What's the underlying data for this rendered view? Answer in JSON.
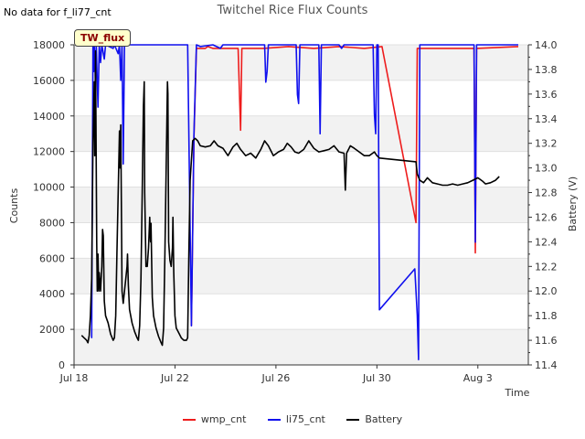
{
  "no_data_note": "No data for f_li77_cnt",
  "site_tag": "TW_flux",
  "chart_data": {
    "type": "line",
    "title": "Twitchel Rice Flux Counts",
    "xlabel": "Time",
    "ylabel": "Counts",
    "y2label": "Battery (V)",
    "x_range_days": [
      0,
      18
    ],
    "ylim": [
      0,
      18000
    ],
    "y2lim": [
      11.4,
      14.0
    ],
    "x_ticks": [
      {
        "label": "Jul 18",
        "day": 0
      },
      {
        "label": "Jul 22",
        "day": 4
      },
      {
        "label": "Jul 26",
        "day": 8
      },
      {
        "label": "Jul 30",
        "day": 12
      },
      {
        "label": "Aug 3",
        "day": 16
      }
    ],
    "y_ticks": [
      0,
      2000,
      4000,
      6000,
      8000,
      10000,
      12000,
      14000,
      16000,
      18000
    ],
    "y_tick_labels": [
      "0",
      "2000",
      "4000",
      "6000",
      "8000",
      "10000",
      "12000",
      "14000",
      "16000",
      "18000"
    ],
    "y2_ticks": [
      11.4,
      11.6,
      11.8,
      12.0,
      12.2,
      12.4,
      12.6,
      12.8,
      13.0,
      13.2,
      13.4,
      13.6,
      13.8,
      14.0
    ],
    "y2_tick_labels": [
      "11.4",
      "11.6",
      "11.8",
      "12.0",
      "12.2",
      "12.4",
      "12.6",
      "12.8",
      "13.0",
      "13.2",
      "13.4",
      "13.6",
      "13.8",
      "14.0"
    ],
    "series": [
      {
        "name": "wmp_cnt",
        "color": "#ee1c1c",
        "axis": "left",
        "points": [
          [
            4.65,
            2200
          ],
          [
            4.75,
            12800
          ],
          [
            4.85,
            17800
          ],
          [
            5.2,
            17800
          ],
          [
            5.3,
            17900
          ],
          [
            5.5,
            17800
          ],
          [
            6.5,
            17800
          ],
          [
            6.6,
            13200
          ],
          [
            6.65,
            17800
          ],
          [
            7.5,
            17800
          ],
          [
            8.5,
            17900
          ],
          [
            9.5,
            17800
          ],
          [
            10.5,
            17900
          ],
          [
            11.5,
            17800
          ],
          [
            12.2,
            17900
          ],
          [
            13.55,
            8000
          ],
          [
            13.6,
            17800
          ],
          [
            14.5,
            17800
          ],
          [
            15.5,
            17800
          ],
          [
            15.85,
            17800
          ],
          [
            15.9,
            6300
          ],
          [
            15.95,
            17800
          ],
          [
            17.6,
            17900
          ]
        ]
      },
      {
        "name": "li75_cnt",
        "color": "#1010ee",
        "axis": "left",
        "points": [
          [
            0.7,
            1500
          ],
          [
            0.75,
            18000
          ],
          [
            0.78,
            16500
          ],
          [
            0.8,
            18000
          ],
          [
            0.85,
            15800
          ],
          [
            0.88,
            18000
          ],
          [
            0.95,
            14500
          ],
          [
            1.0,
            18000
          ],
          [
            1.05,
            17000
          ],
          [
            1.1,
            18000
          ],
          [
            1.2,
            17200
          ],
          [
            1.25,
            18000
          ],
          [
            1.55,
            17800
          ],
          [
            1.6,
            18000
          ],
          [
            1.75,
            17500
          ],
          [
            1.8,
            18000
          ],
          [
            1.85,
            16000
          ],
          [
            1.9,
            18000
          ],
          [
            1.95,
            11300
          ],
          [
            2.0,
            18000
          ],
          [
            2.5,
            18000
          ],
          [
            3.0,
            18000
          ],
          [
            3.5,
            18000
          ],
          [
            4.0,
            18000
          ],
          [
            4.5,
            18000
          ],
          [
            4.65,
            2200
          ],
          [
            4.75,
            13000
          ],
          [
            4.85,
            18000
          ],
          [
            5.0,
            17900
          ],
          [
            5.5,
            18000
          ],
          [
            5.8,
            17800
          ],
          [
            5.9,
            18000
          ],
          [
            6.5,
            18000
          ],
          [
            7.0,
            18000
          ],
          [
            7.55,
            18000
          ],
          [
            7.6,
            15900
          ],
          [
            7.65,
            16500
          ],
          [
            7.7,
            18000
          ],
          [
            8.5,
            18000
          ],
          [
            8.8,
            18000
          ],
          [
            8.85,
            15200
          ],
          [
            8.9,
            14700
          ],
          [
            8.95,
            18000
          ],
          [
            9.5,
            18000
          ],
          [
            9.7,
            18000
          ],
          [
            9.75,
            13000
          ],
          [
            9.8,
            18000
          ],
          [
            10.5,
            18000
          ],
          [
            10.6,
            17800
          ],
          [
            10.7,
            18000
          ],
          [
            11.5,
            18000
          ],
          [
            11.85,
            18000
          ],
          [
            11.9,
            14100
          ],
          [
            11.95,
            13000
          ],
          [
            12.0,
            18000
          ],
          [
            12.05,
            18000
          ],
          [
            12.1,
            3100
          ],
          [
            13.5,
            5400
          ],
          [
            13.6,
            2800
          ],
          [
            13.65,
            300
          ],
          [
            13.7,
            18000
          ],
          [
            14.5,
            18000
          ],
          [
            15.5,
            18000
          ],
          [
            15.85,
            18000
          ],
          [
            15.9,
            6900
          ],
          [
            15.95,
            18000
          ],
          [
            16.5,
            18000
          ],
          [
            17.6,
            18000
          ]
        ]
      },
      {
        "name": "Battery",
        "color": "#000000",
        "axis": "right",
        "points": [
          [
            0.3,
            11.64
          ],
          [
            0.4,
            11.62
          ],
          [
            0.45,
            11.61
          ],
          [
            0.5,
            11.6
          ],
          [
            0.55,
            11.58
          ],
          [
            0.6,
            11.64
          ],
          [
            0.65,
            11.8
          ],
          [
            0.7,
            12.1
          ],
          [
            0.75,
            13.2
          ],
          [
            0.8,
            13.7
          ],
          [
            0.82,
            13.1
          ],
          [
            0.85,
            13.95
          ],
          [
            0.9,
            12.4
          ],
          [
            0.92,
            12.0
          ],
          [
            0.95,
            12.3
          ],
          [
            0.98,
            12.0
          ],
          [
            1.0,
            12.15
          ],
          [
            1.05,
            12.0
          ],
          [
            1.1,
            12.2
          ],
          [
            1.13,
            12.5
          ],
          [
            1.16,
            12.45
          ],
          [
            1.2,
            11.92
          ],
          [
            1.25,
            11.8
          ],
          [
            1.35,
            11.74
          ],
          [
            1.45,
            11.65
          ],
          [
            1.55,
            11.6
          ],
          [
            1.6,
            11.62
          ],
          [
            1.65,
            11.8
          ],
          [
            1.7,
            12.3
          ],
          [
            1.75,
            12.8
          ],
          [
            1.8,
            13.3
          ],
          [
            1.82,
            13.0
          ],
          [
            1.85,
            13.35
          ],
          [
            1.88,
            12.6
          ],
          [
            1.9,
            12.0
          ],
          [
            1.95,
            11.9
          ],
          [
            2.0,
            12.0
          ],
          [
            2.05,
            12.1
          ],
          [
            2.1,
            12.2
          ],
          [
            2.12,
            12.3
          ],
          [
            2.15,
            12.05
          ],
          [
            2.2,
            11.85
          ],
          [
            2.3,
            11.74
          ],
          [
            2.4,
            11.67
          ],
          [
            2.5,
            11.62
          ],
          [
            2.55,
            11.6
          ],
          [
            2.6,
            11.72
          ],
          [
            2.65,
            12.1
          ],
          [
            2.7,
            12.8
          ],
          [
            2.75,
            13.5
          ],
          [
            2.78,
            13.7
          ],
          [
            2.8,
            12.8
          ],
          [
            2.85,
            12.2
          ],
          [
            2.9,
            12.2
          ],
          [
            2.95,
            12.35
          ],
          [
            3.0,
            12.6
          ],
          [
            3.03,
            12.4
          ],
          [
            3.05,
            12.55
          ],
          [
            3.1,
            11.95
          ],
          [
            3.15,
            11.8
          ],
          [
            3.25,
            11.7
          ],
          [
            3.35,
            11.63
          ],
          [
            3.45,
            11.58
          ],
          [
            3.5,
            11.56
          ],
          [
            3.55,
            11.7
          ],
          [
            3.6,
            12.3
          ],
          [
            3.65,
            13.0
          ],
          [
            3.7,
            13.7
          ],
          [
            3.72,
            13.6
          ],
          [
            3.75,
            12.4
          ],
          [
            3.8,
            12.25
          ],
          [
            3.85,
            12.2
          ],
          [
            3.9,
            12.35
          ],
          [
            3.92,
            12.6
          ],
          [
            3.95,
            12.15
          ],
          [
            4.0,
            11.8
          ],
          [
            4.05,
            11.7
          ],
          [
            4.15,
            11.66
          ],
          [
            4.25,
            11.62
          ],
          [
            4.35,
            11.6
          ],
          [
            4.45,
            11.6
          ],
          [
            4.5,
            11.62
          ],
          [
            4.55,
            12.3
          ],
          [
            4.6,
            12.9
          ],
          [
            4.7,
            13.22
          ],
          [
            4.8,
            13.24
          ],
          [
            4.9,
            13.22
          ],
          [
            5.0,
            13.18
          ],
          [
            5.2,
            13.17
          ],
          [
            5.4,
            13.18
          ],
          [
            5.55,
            13.22
          ],
          [
            5.7,
            13.18
          ],
          [
            5.9,
            13.16
          ],
          [
            6.1,
            13.1
          ],
          [
            6.3,
            13.17
          ],
          [
            6.45,
            13.2
          ],
          [
            6.6,
            13.15
          ],
          [
            6.8,
            13.1
          ],
          [
            7.0,
            13.12
          ],
          [
            7.2,
            13.08
          ],
          [
            7.4,
            13.15
          ],
          [
            7.55,
            13.22
          ],
          [
            7.7,
            13.18
          ],
          [
            7.9,
            13.1
          ],
          [
            8.1,
            13.13
          ],
          [
            8.3,
            13.15
          ],
          [
            8.45,
            13.2
          ],
          [
            8.6,
            13.17
          ],
          [
            8.75,
            13.13
          ],
          [
            8.9,
            13.12
          ],
          [
            9.1,
            13.15
          ],
          [
            9.3,
            13.22
          ],
          [
            9.5,
            13.16
          ],
          [
            9.7,
            13.13
          ],
          [
            9.9,
            13.14
          ],
          [
            10.1,
            13.15
          ],
          [
            10.3,
            13.18
          ],
          [
            10.5,
            13.13
          ],
          [
            10.7,
            13.12
          ],
          [
            10.75,
            12.82
          ],
          [
            10.8,
            13.12
          ],
          [
            10.95,
            13.18
          ],
          [
            11.1,
            13.16
          ],
          [
            11.3,
            13.13
          ],
          [
            11.5,
            13.1
          ],
          [
            11.7,
            13.1
          ],
          [
            11.9,
            13.13
          ],
          [
            12.0,
            13.1
          ],
          [
            12.1,
            13.08
          ],
          [
            13.55,
            13.05
          ],
          [
            13.6,
            12.95
          ],
          [
            13.7,
            12.9
          ],
          [
            13.85,
            12.88
          ],
          [
            14.0,
            12.92
          ],
          [
            14.2,
            12.88
          ],
          [
            14.4,
            12.87
          ],
          [
            14.6,
            12.86
          ],
          [
            14.8,
            12.86
          ],
          [
            15.0,
            12.87
          ],
          [
            15.2,
            12.86
          ],
          [
            15.4,
            12.87
          ],
          [
            15.6,
            12.88
          ],
          [
            15.8,
            12.9
          ],
          [
            16.0,
            12.92
          ],
          [
            16.2,
            12.89
          ],
          [
            16.3,
            12.87
          ],
          [
            16.5,
            12.88
          ],
          [
            16.7,
            12.9
          ],
          [
            16.85,
            12.93
          ]
        ]
      }
    ],
    "legend": [
      "wmp_cnt",
      "li75_cnt",
      "Battery"
    ],
    "legend_position": "bottom-center",
    "grid_bands": true
  }
}
